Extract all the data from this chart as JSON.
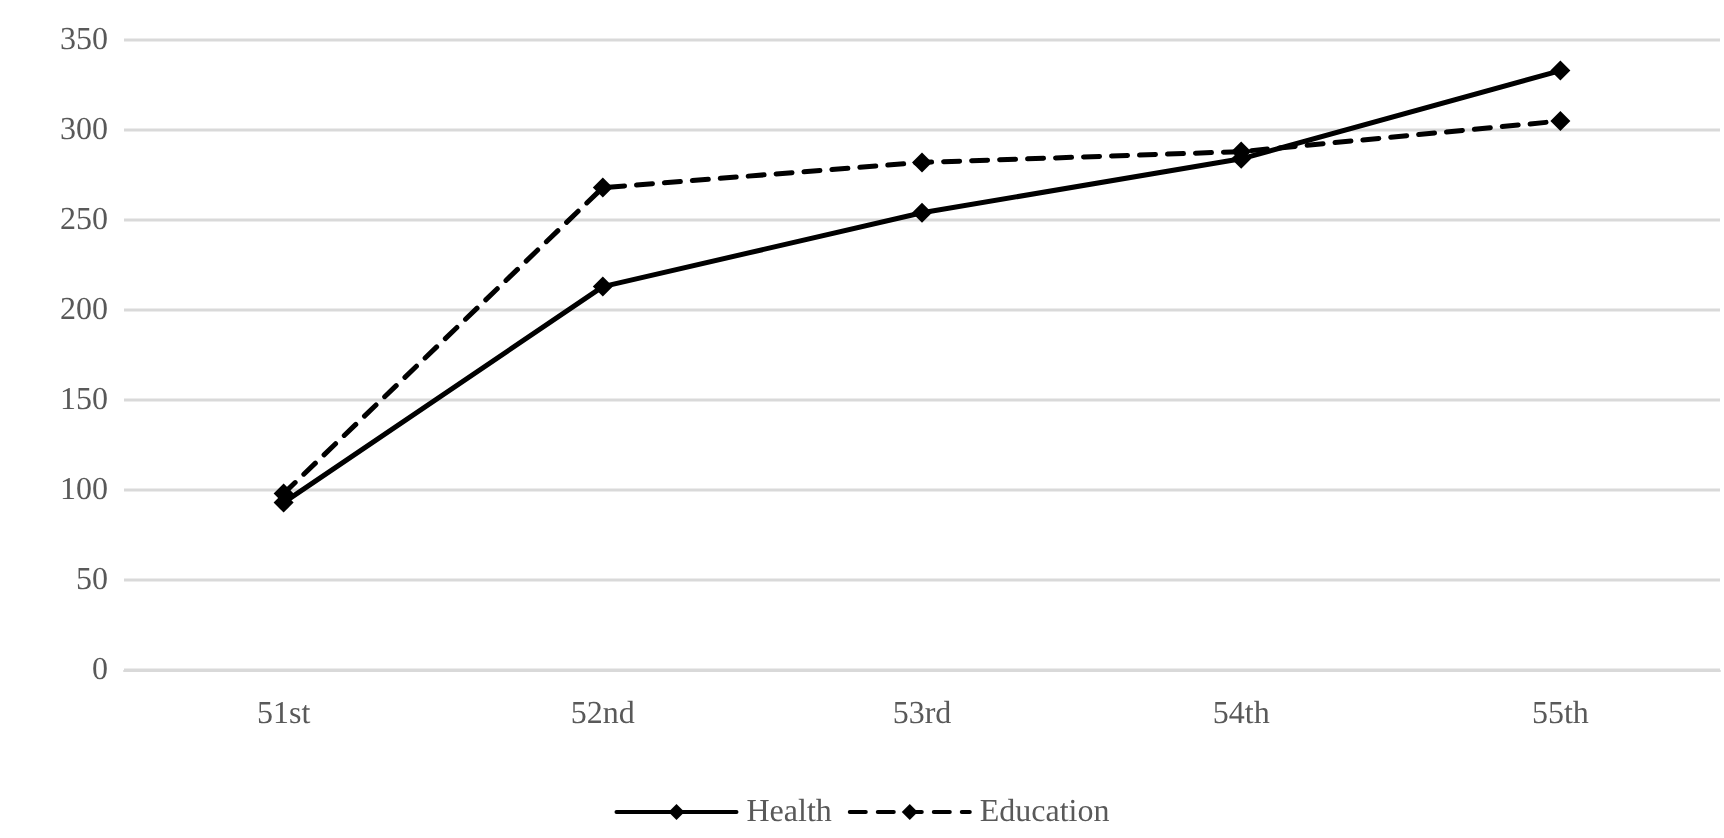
{
  "chart_data": {
    "type": "line",
    "categories": [
      "51st",
      "52nd",
      "53rd",
      "54th",
      "55th"
    ],
    "series": [
      {
        "name": "Health",
        "color": "#000000",
        "values": [
          93,
          213,
          254,
          284,
          333
        ],
        "line_style": "solid"
      },
      {
        "name": "Education",
        "color": "#000000",
        "values": [
          98,
          268,
          282,
          288,
          305
        ],
        "line_style": "dashed"
      }
    ],
    "ylim": [
      0,
      350
    ],
    "yticks": [
      0,
      50,
      100,
      150,
      200,
      250,
      300,
      350
    ],
    "grid": "y",
    "legend": "bottom",
    "marker": "diamond"
  }
}
